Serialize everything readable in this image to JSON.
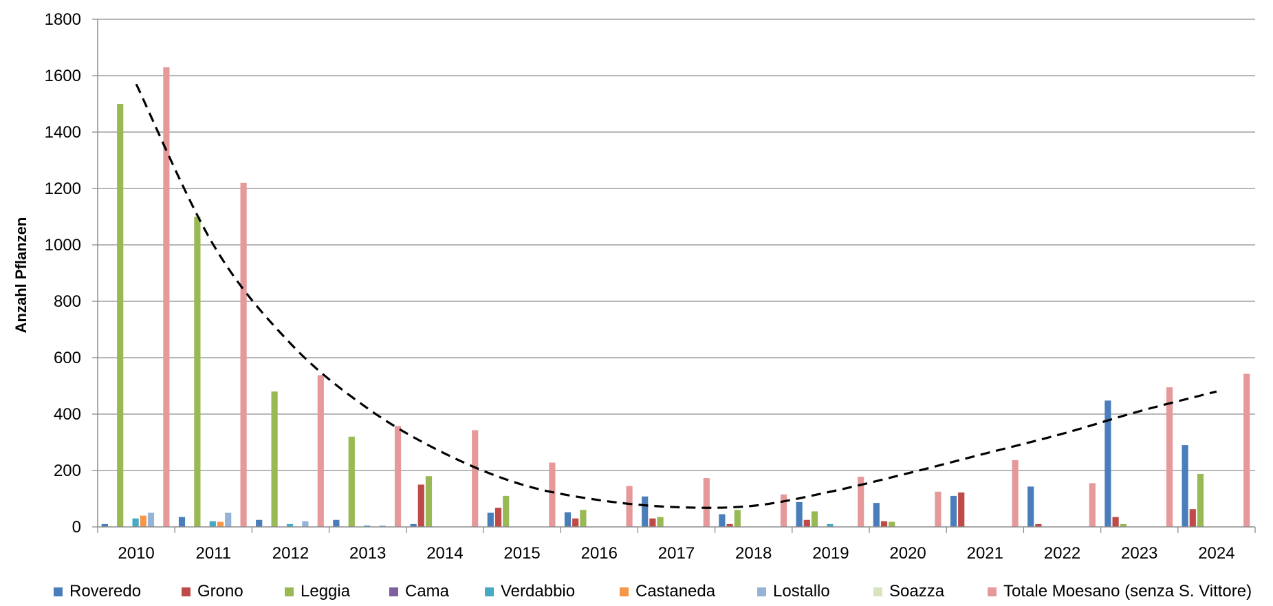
{
  "chart_data": {
    "type": "bar",
    "title": "",
    "xlabel": "",
    "ylabel": "Anzahl Pflanzen",
    "ylim": [
      0,
      1800
    ],
    "yticks": [
      "0",
      "200",
      "400",
      "600",
      "800",
      "1000",
      "1200",
      "1400",
      "1600",
      "1800"
    ],
    "grid": true,
    "legend_position": "bottom",
    "categories": [
      "2010",
      "2011",
      "2012",
      "2013",
      "2014",
      "2015",
      "2016",
      "2017",
      "2018",
      "2019",
      "2020",
      "2021",
      "2022",
      "2023",
      "2024"
    ],
    "series": [
      {
        "name": "Roveredo",
        "color": "#4a7ebb",
        "values": [
          10,
          35,
          25,
          25,
          10,
          50,
          52,
          108,
          45,
          88,
          85,
          110,
          143,
          448,
          290
        ]
      },
      {
        "name": "Grono",
        "color": "#be4b48",
        "values": [
          0,
          0,
          0,
          0,
          150,
          68,
          30,
          30,
          10,
          25,
          20,
          122,
          10,
          35,
          63
        ]
      },
      {
        "name": "Leggia",
        "color": "#98b954",
        "values": [
          1500,
          1100,
          480,
          320,
          180,
          110,
          60,
          35,
          60,
          55,
          18,
          0,
          0,
          10,
          188
        ]
      },
      {
        "name": "Cama",
        "color": "#7d60a0",
        "values": [
          0,
          0,
          0,
          0,
          0,
          0,
          0,
          0,
          0,
          0,
          0,
          0,
          0,
          0,
          0
        ]
      },
      {
        "name": "Verdabbio",
        "color": "#46aac5",
        "values": [
          30,
          20,
          10,
          5,
          0,
          0,
          0,
          0,
          0,
          10,
          0,
          0,
          0,
          0,
          0
        ]
      },
      {
        "name": "Castaneda",
        "color": "#f79646",
        "values": [
          40,
          18,
          0,
          0,
          0,
          0,
          0,
          0,
          0,
          0,
          0,
          0,
          0,
          0,
          0
        ]
      },
      {
        "name": "Lostallo",
        "color": "#95b3d7",
        "values": [
          50,
          50,
          20,
          5,
          0,
          0,
          0,
          0,
          0,
          0,
          0,
          0,
          0,
          0,
          0
        ]
      },
      {
        "name": "Soazza",
        "color": "#d7e4bd",
        "values": [
          0,
          0,
          0,
          0,
          0,
          0,
          0,
          0,
          0,
          0,
          0,
          0,
          0,
          0,
          0
        ]
      },
      {
        "name": "Totale Moesano (senza S. Vittore)",
        "color": "#e6999a",
        "values": [
          1630,
          1220,
          538,
          358,
          343,
          228,
          145,
          173,
          115,
          178,
          125,
          237,
          155,
          495,
          543
        ]
      }
    ],
    "trendline": {
      "style": "dashed",
      "color": "#000000",
      "x": [
        "2010",
        "2011",
        "2012",
        "2013",
        "2014",
        "2015",
        "2016",
        "2017",
        "2018",
        "2019",
        "2020",
        "2021",
        "2022",
        "2023",
        "2024"
      ],
      "y": [
        1570,
        1000,
        650,
        420,
        260,
        150,
        95,
        70,
        75,
        125,
        190,
        260,
        330,
        410,
        480
      ]
    }
  }
}
